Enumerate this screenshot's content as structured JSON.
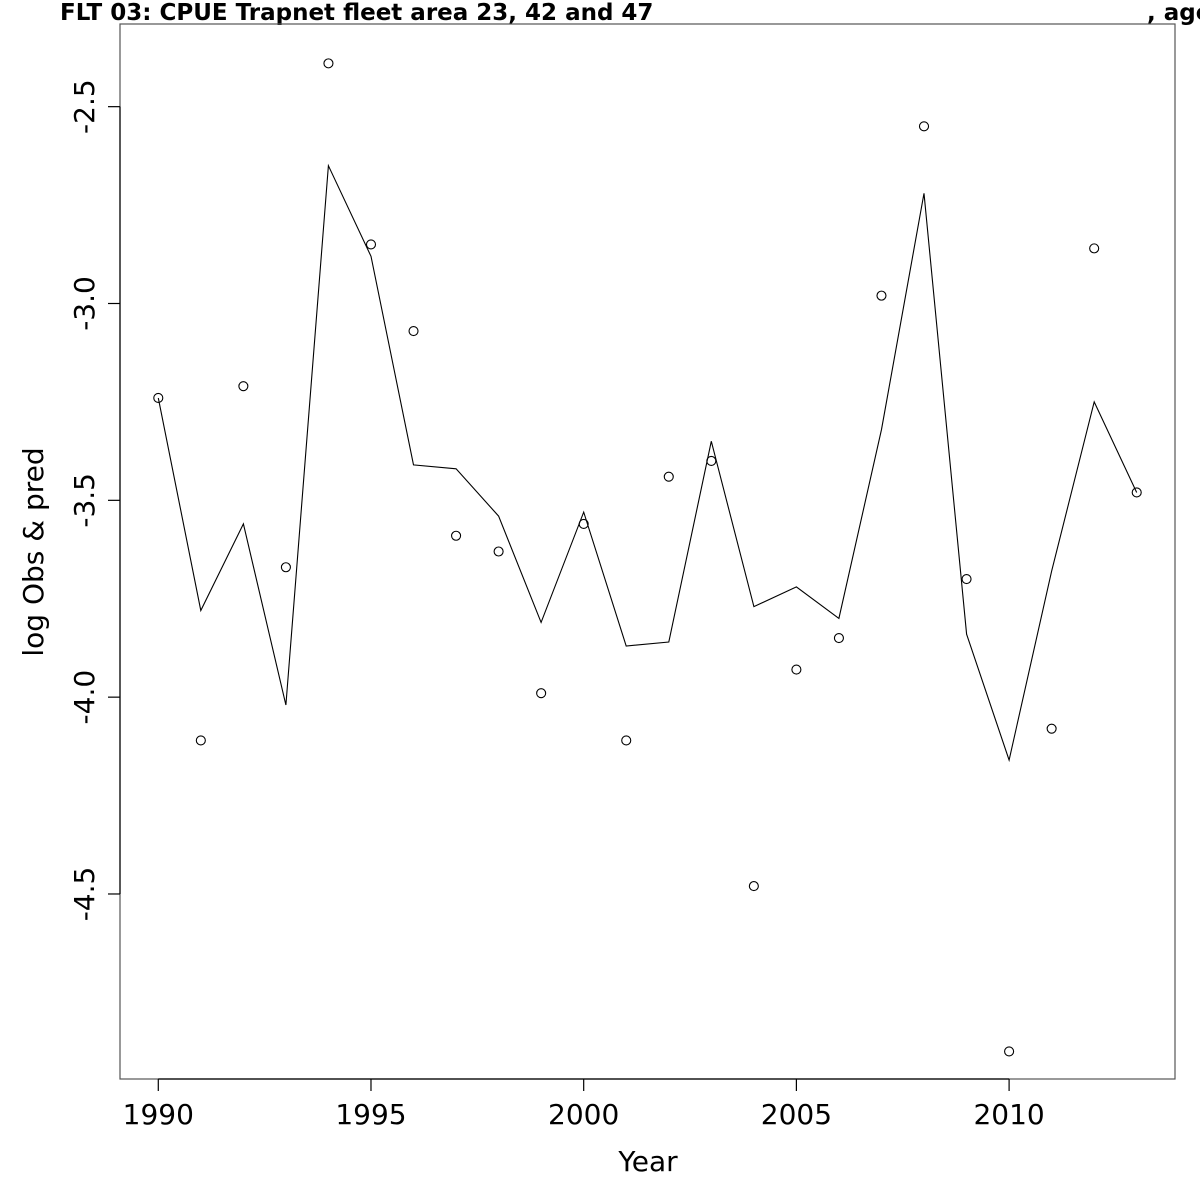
{
  "chart_data": {
    "type": "line",
    "title": "FLT 03: CPUE Trapnet fleet area 23, 42 and 47",
    "title_suffix": ", age",
    "xlabel": "Year",
    "ylabel": "log Obs & pred",
    "xlim": [
      1989.1,
      2013.9
    ],
    "ylim": [
      -4.97,
      -2.29
    ],
    "x_ticks": [
      1990,
      1995,
      2000,
      2005,
      2010
    ],
    "y_ticks": [
      -2.5,
      -3.0,
      -3.5,
      -4.0,
      -4.5
    ],
    "x_tick_labels": [
      "1990",
      "1995",
      "2000",
      "2005",
      "2010"
    ],
    "y_tick_labels": [
      "-2.5",
      "-3.0",
      "-3.5",
      "-4.0",
      "-4.5"
    ],
    "grid": false,
    "legend": "none",
    "x": [
      1990,
      1991,
      1992,
      1993,
      1994,
      1995,
      1996,
      1997,
      1998,
      1999,
      2000,
      2001,
      2002,
      2003,
      2004,
      2005,
      2006,
      2007,
      2008,
      2009,
      2010,
      2011,
      2012,
      2013
    ],
    "series": [
      {
        "kind": "points",
        "marker": "open-circle",
        "values": [
          -3.24,
          -4.11,
          -3.21,
          -3.67,
          -2.39,
          -2.85,
          -3.07,
          -3.59,
          -3.63,
          -3.99,
          -3.56,
          -4.11,
          -3.44,
          -3.4,
          -4.48,
          -3.93,
          -3.85,
          -2.98,
          -2.55,
          -3.7,
          -4.9,
          -4.08,
          -2.86,
          -3.48
        ]
      },
      {
        "kind": "line",
        "values": [
          -3.24,
          -3.78,
          -3.56,
          -4.02,
          -2.65,
          -2.88,
          -3.41,
          -3.42,
          -3.54,
          -3.81,
          -3.53,
          -3.87,
          -3.86,
          -3.35,
          -3.77,
          -3.72,
          -3.8,
          -3.32,
          -2.72,
          -3.84,
          -4.16,
          -3.68,
          -3.25,
          -3.48
        ]
      }
    ],
    "colors": {
      "line": "#000000",
      "points": "#000000",
      "axes": "#000000",
      "background": "#ffffff"
    }
  }
}
